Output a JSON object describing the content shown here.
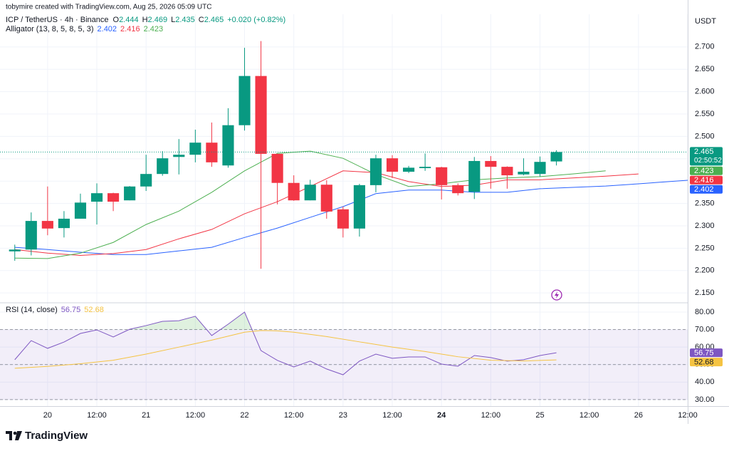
{
  "chart_data": [
    {
      "type": "candlestick",
      "attribution": "tobymire created with TradingView.com, Aug 25, 2026 05:09 UTC",
      "title": "ICP / TetherUS · 4h · Binance",
      "ohlc_labels": [
        "O",
        "H",
        "L",
        "C"
      ],
      "change_label": "+0.020 (+0.82%)",
      "indicator": "Alligator (13, 8, 5, 8, 5, 3)",
      "currency": "USDT",
      "countdown": "02:50:52",
      "brand": "TradingView",
      "up_color": "#089981",
      "down_color": "#f23645",
      "x": [
        -8,
        -4,
        0,
        4,
        8,
        12,
        16,
        20,
        24,
        28,
        32,
        36,
        40,
        44,
        48,
        52,
        56,
        60,
        64,
        68,
        72,
        76,
        80,
        84,
        88,
        92,
        96,
        100,
        104,
        108,
        112,
        116,
        120,
        124
      ],
      "open": [
        2.243,
        2.247,
        2.311,
        2.295,
        2.316,
        2.354,
        2.373,
        2.357,
        2.388,
        2.416,
        2.454,
        2.459,
        2.486,
        2.435,
        2.525,
        2.635,
        2.461,
        2.396,
        2.357,
        2.392,
        2.337,
        2.294,
        2.391,
        2.451,
        2.421,
        2.429,
        2.431,
        2.391,
        2.376,
        2.445,
        2.432,
        2.415,
        2.416,
        2.444
      ],
      "high": [
        2.258,
        2.33,
        2.388,
        2.333,
        2.372,
        2.395,
        2.374,
        2.389,
        2.459,
        2.467,
        2.494,
        2.515,
        2.531,
        2.563,
        2.698,
        2.713,
        2.461,
        2.413,
        2.403,
        2.402,
        2.343,
        2.394,
        2.459,
        2.458,
        2.434,
        2.462,
        2.432,
        2.395,
        2.454,
        2.456,
        2.433,
        2.451,
        2.455,
        2.469
      ],
      "low": [
        2.222,
        2.234,
        2.279,
        2.274,
        2.316,
        2.303,
        2.333,
        2.357,
        2.378,
        2.412,
        2.415,
        2.442,
        2.432,
        2.43,
        2.513,
        2.204,
        2.348,
        2.356,
        2.357,
        2.316,
        2.274,
        2.276,
        2.375,
        2.407,
        2.418,
        2.423,
        2.359,
        2.368,
        2.36,
        2.383,
        2.383,
        2.413,
        2.41,
        2.435
      ],
      "close": [
        2.247,
        2.311,
        2.294,
        2.316,
        2.352,
        2.373,
        2.354,
        2.388,
        2.416,
        2.451,
        2.459,
        2.486,
        2.442,
        2.525,
        2.635,
        2.461,
        2.396,
        2.357,
        2.392,
        2.332,
        2.294,
        2.391,
        2.451,
        2.421,
        2.43,
        2.432,
        2.391,
        2.373,
        2.445,
        2.432,
        2.413,
        2.421,
        2.443,
        2.465
      ],
      "series": [
        {
          "color": "#2962ff",
          "x": [
            -8,
            0,
            8,
            16,
            24,
            32,
            40,
            48,
            56,
            64,
            72,
            80,
            88,
            96,
            104,
            112,
            120,
            128,
            136,
            144,
            156
          ],
          "values": [
            2.252,
            2.247,
            2.241,
            2.236,
            2.236,
            2.244,
            2.252,
            2.274,
            2.295,
            2.319,
            2.343,
            2.372,
            2.38,
            2.38,
            2.375,
            2.375,
            2.383,
            2.386,
            2.389,
            2.394,
            2.402
          ]
        },
        {
          "color": "#f23645",
          "x": [
            -8,
            0,
            8,
            16,
            24,
            32,
            40,
            48,
            56,
            64,
            72,
            80,
            88,
            96,
            104,
            112,
            120,
            128,
            136,
            144
          ],
          "values": [
            2.247,
            2.239,
            2.234,
            2.238,
            2.247,
            2.271,
            2.292,
            2.327,
            2.354,
            2.388,
            2.423,
            2.419,
            2.399,
            2.388,
            2.391,
            2.403,
            2.403,
            2.407,
            2.411,
            2.416
          ]
        },
        {
          "color": "#4caf50",
          "x": [
            -8,
            0,
            8,
            16,
            24,
            32,
            40,
            48,
            56,
            64,
            72,
            80,
            88,
            96,
            104,
            112,
            120,
            128,
            136
          ],
          "values": [
            2.228,
            2.227,
            2.239,
            2.263,
            2.303,
            2.333,
            2.375,
            2.423,
            2.462,
            2.467,
            2.451,
            2.415,
            2.388,
            2.394,
            2.403,
            2.407,
            2.41,
            2.416,
            2.423
          ]
        }
      ],
      "xlim": [
        -11.6,
        156
      ],
      "xticks": [
        {
          "value": 0,
          "label": "20"
        },
        {
          "value": 12,
          "label": "12:00"
        },
        {
          "value": 24,
          "label": "21"
        },
        {
          "value": 36,
          "label": "12:00"
        },
        {
          "value": 48,
          "label": "22"
        },
        {
          "value": 60,
          "label": "12:00"
        },
        {
          "value": 72,
          "label": "23"
        },
        {
          "value": 84,
          "label": "12:00"
        },
        {
          "value": 96,
          "label": "24"
        },
        {
          "value": 108,
          "label": "12:00"
        },
        {
          "value": 120,
          "label": "25"
        },
        {
          "value": 132,
          "label": "12:00"
        },
        {
          "value": 144,
          "label": "26"
        },
        {
          "value": 156,
          "label": "12:00"
        }
      ],
      "ylim": [
        2.128,
        2.773
      ],
      "yticks": [
        {
          "value": 2.15,
          "label": "2.150"
        },
        {
          "value": 2.2,
          "label": "2.200"
        },
        {
          "value": 2.25,
          "label": "2.250"
        },
        {
          "value": 2.3,
          "label": "2.300"
        },
        {
          "value": 2.35,
          "label": "2.350"
        },
        {
          "value": 2.4,
          "label": "2.400"
        },
        {
          "value": 2.45,
          "label": "2.450"
        },
        {
          "value": 2.5,
          "label": "2.500"
        },
        {
          "value": 2.55,
          "label": "2.550"
        },
        {
          "value": 2.6,
          "label": "2.600"
        },
        {
          "value": 2.65,
          "label": "2.650"
        },
        {
          "value": 2.7,
          "label": "2.700"
        }
      ],
      "grid": true
    },
    {
      "type": "line",
      "title": "RSI (14, close)",
      "series": [
        {
          "color": "#7e57c2",
          "x": [
            -8,
            -4,
            0,
            4,
            8,
            12,
            16,
            20,
            24,
            28,
            32,
            36,
            40,
            44,
            48,
            52,
            56,
            60,
            64,
            68,
            72,
            76,
            80,
            84,
            88,
            92,
            96,
            100,
            104,
            108,
            112,
            116,
            120,
            124
          ],
          "values": [
            52.8,
            63.7,
            59.3,
            62.9,
            67.8,
            69.8,
            65.8,
            70.2,
            72.3,
            74.7,
            75.1,
            77.6,
            66.6,
            73.1,
            80.0,
            58.0,
            52.4,
            48.7,
            52.0,
            47.5,
            44.2,
            52.0,
            56.0,
            53.6,
            54.4,
            54.4,
            50.3,
            49.1,
            55.2,
            54.0,
            52.0,
            52.8,
            55.2,
            56.75
          ]
        },
        {
          "color": "#f5c342",
          "x": [
            -8,
            0,
            8,
            16,
            24,
            32,
            40,
            48,
            52,
            56,
            60,
            68,
            76,
            84,
            92,
            100,
            108,
            116,
            124
          ],
          "values": [
            47.9,
            49.0,
            50.5,
            52.5,
            56.0,
            60.0,
            64.0,
            68.5,
            69.5,
            69.3,
            68.5,
            66.0,
            63.0,
            60.0,
            57.5,
            54.5,
            52.5,
            52.1,
            52.68
          ]
        }
      ],
      "bands": [
        70,
        50,
        30
      ],
      "xlim": [
        -11.6,
        156
      ],
      "ylim": [
        26.3,
        85.3
      ],
      "yticks": [
        {
          "value": 30,
          "label": "30.00"
        },
        {
          "value": 40,
          "label": "40.00"
        },
        {
          "value": 50,
          "label": "50.00"
        },
        {
          "value": 60,
          "label": "60.00"
        },
        {
          "value": 70,
          "label": "70.00"
        },
        {
          "value": 80,
          "label": "80.00"
        }
      ],
      "grid": true
    }
  ]
}
